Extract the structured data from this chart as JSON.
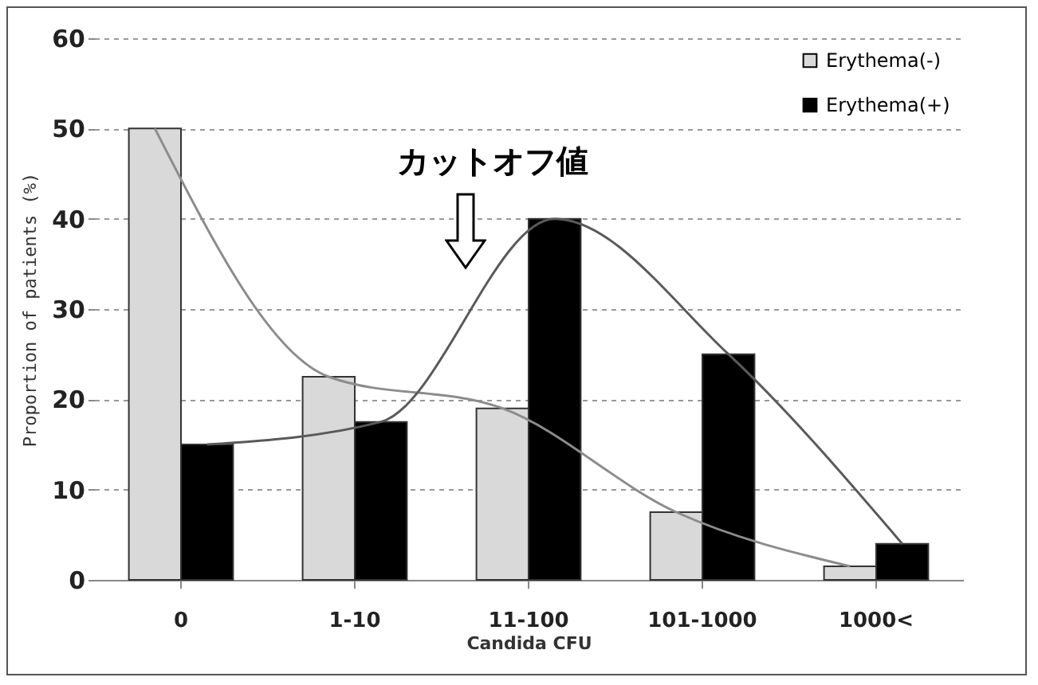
{
  "chart_data": {
    "type": "bar",
    "xlabel": "Candida CFU",
    "ylabel": "Proportion of patients (%)",
    "categories": [
      "0",
      "1-10",
      "11-100",
      "101-1000",
      "1000<"
    ],
    "series": [
      {
        "name": "Erythema(-)",
        "color": "#d9d9d9",
        "values": [
          50,
          22.5,
          19,
          7.5,
          1.5
        ]
      },
      {
        "name": "Erythema(+)",
        "color": "#000000",
        "values": [
          15,
          17.5,
          40,
          25,
          4
        ]
      },
      {
        "type": "line",
        "color": "#8c8c8c",
        "values": [
          50,
          22.5,
          19,
          7.5,
          1.5
        ]
      },
      {
        "type": "line",
        "color": "#5a5a5a",
        "values": [
          15,
          17.5,
          40,
          25,
          4
        ]
      }
    ],
    "ylim": [
      0,
      60
    ],
    "yticks": [
      0,
      10,
      20,
      30,
      40,
      50,
      60
    ],
    "grid": "y",
    "legend": "top right",
    "marker": "none",
    "annotations": [
      "カットオフ値"
    ]
  }
}
